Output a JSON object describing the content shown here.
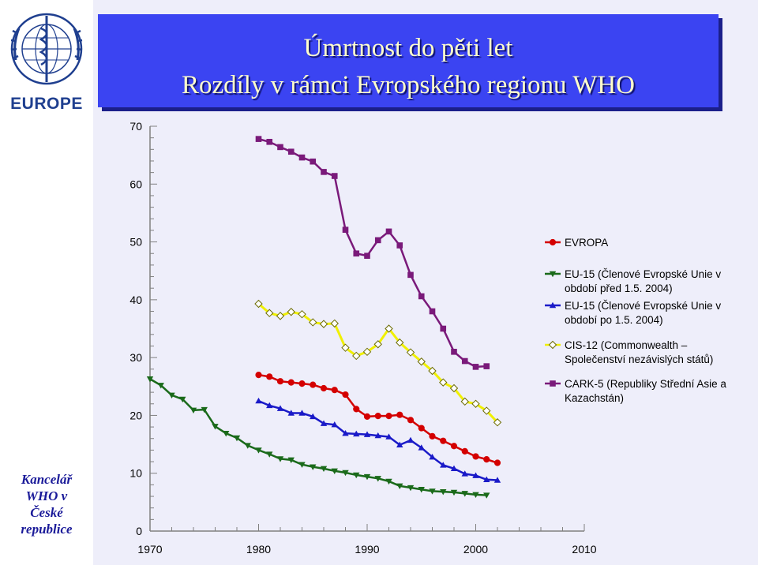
{
  "sidebar": {
    "logo_text": "EUROPE",
    "office_label": [
      "Kancelář",
      "WHO v",
      "České",
      "republice"
    ]
  },
  "header": {
    "title_line1": "Úmrtnost do pěti let",
    "title_line2": "Rozdíly v rámci Evropského regionu WHO"
  },
  "colors": {
    "title_background": "#3b44f2",
    "title_text": "#ffffcc",
    "plot_background": "#eeeefa"
  },
  "chart_data": {
    "type": "line",
    "title": "",
    "xlabel": "",
    "ylabel": "",
    "xlim": [
      1970,
      2010
    ],
    "ylim": [
      0,
      70
    ],
    "x_ticks": [
      "1970",
      "1980",
      "1990",
      "2000",
      "2010"
    ],
    "y_ticks": [
      "0",
      "10",
      "20",
      "30",
      "40",
      "50",
      "60",
      "70"
    ],
    "grid": false,
    "legend_position": "right",
    "series": [
      {
        "name": "EVROPA",
        "color": "#d40000",
        "marker": "circle",
        "x": [
          1980,
          1981,
          1982,
          1983,
          1984,
          1985,
          1986,
          1987,
          1988,
          1989,
          1990,
          1991,
          1992,
          1993,
          1994,
          1995,
          1996,
          1997,
          1998,
          1999,
          2000,
          2001,
          2002
        ],
        "y": [
          27,
          26.7,
          25.9,
          25.7,
          25.5,
          25.3,
          24.7,
          24.4,
          23.6,
          21.1,
          19.8,
          19.9,
          19.9,
          20.1,
          19.2,
          17.8,
          16.4,
          15.6,
          14.7,
          13.8,
          12.9,
          12.4,
          11.8
        ]
      },
      {
        "name": "EU-15 (Členové Evropské Unie v období před 1.5. 2004)",
        "color": "#1a6a1a",
        "marker": "triangle-down",
        "x": [
          1970,
          1971,
          1972,
          1973,
          1974,
          1975,
          1976,
          1977,
          1978,
          1979,
          1980,
          1981,
          1982,
          1983,
          1984,
          1985,
          1986,
          1987,
          1988,
          1989,
          1990,
          1991,
          1992,
          1993,
          1994,
          1995,
          1996,
          1997,
          1998,
          1999,
          2000,
          2001
        ],
        "y": [
          26.3,
          25.2,
          23.5,
          22.8,
          20.9,
          21.0,
          18.1,
          16.9,
          16.1,
          14.8,
          14.0,
          13.3,
          12.5,
          12.3,
          11.5,
          11.1,
          10.8,
          10.4,
          10.1,
          9.7,
          9.4,
          9.1,
          8.6,
          7.8,
          7.5,
          7.2,
          6.9,
          6.8,
          6.7,
          6.5,
          6.3,
          6.2
        ]
      },
      {
        "name": "EU-15 (Členové Evropské Unie v období po 1.5. 2004)",
        "color": "#1a1ac8",
        "marker": "triangle-up",
        "x": [
          1980,
          1981,
          1982,
          1983,
          1984,
          1985,
          1986,
          1987,
          1988,
          1989,
          1990,
          1991,
          1992,
          1993,
          1994,
          1995,
          1996,
          1997,
          1998,
          1999,
          2000,
          2001,
          2002
        ],
        "y": [
          22.5,
          21.7,
          21.2,
          20.4,
          20.4,
          19.8,
          18.6,
          18.4,
          16.9,
          16.8,
          16.7,
          16.5,
          16.3,
          14.9,
          15.7,
          14.4,
          12.8,
          11.4,
          10.8,
          9.9,
          9.6,
          8.9,
          8.8
        ]
      },
      {
        "name": "CIS-12 (Commonwealth – Společenství nezávislých států)",
        "color": "#f0f000",
        "marker": "diamond",
        "x": [
          1980,
          1981,
          1982,
          1983,
          1984,
          1985,
          1986,
          1987,
          1988,
          1989,
          1990,
          1991,
          1992,
          1993,
          1994,
          1995,
          1996,
          1997,
          1998,
          1999,
          2000,
          2001,
          2002
        ],
        "y": [
          39.3,
          37.7,
          37.2,
          37.9,
          37.5,
          36.1,
          35.8,
          35.9,
          31.7,
          30.3,
          31.0,
          32.3,
          35.0,
          32.6,
          30.9,
          29.3,
          27.7,
          25.7,
          24.7,
          22.4,
          22.0,
          20.8,
          18.8
        ]
      },
      {
        "name": "CARK-5 (Republiky Střední Asie a Kazachstán)",
        "color": "#7a1a7a",
        "marker": "square",
        "x": [
          1980,
          1981,
          1982,
          1983,
          1984,
          1985,
          1986,
          1987,
          1988,
          1989,
          1990,
          1991,
          1992,
          1993,
          1994,
          1995,
          1996,
          1997,
          1998,
          1999,
          2000,
          2001
        ],
        "y": [
          67.8,
          67.3,
          66.4,
          65.6,
          64.6,
          63.9,
          62.1,
          61.4,
          52.1,
          48.0,
          47.6,
          50.3,
          51.8,
          49.4,
          44.3,
          40.6,
          38.0,
          35.0,
          31.0,
          29.4,
          28.4,
          28.5
        ]
      }
    ]
  }
}
